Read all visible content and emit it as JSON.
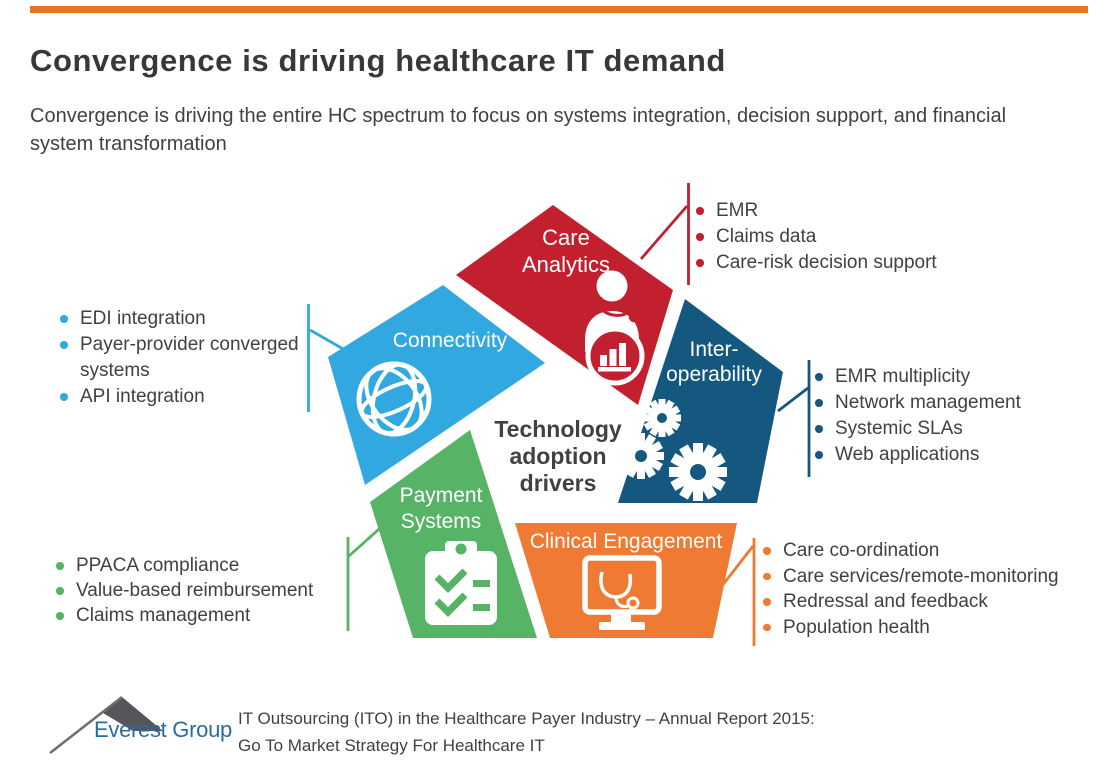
{
  "page": {
    "title": "Convergence is driving healthcare IT demand",
    "subtitle": "Convergence is driving the entire HC spectrum to focus on systems integration, decision support, and financial system transformation",
    "accent_bar_color": "#E87424"
  },
  "center": {
    "label": "Technology\nadoption\ndrivers"
  },
  "segments": {
    "care_analytics": {
      "label": "Care\nAnalytics",
      "color": "#C3202F",
      "items": [
        "EMR",
        "Claims data",
        "Care-risk decision support"
      ]
    },
    "connectivity": {
      "label": "Connectivity",
      "color": "#31A8E0",
      "items": [
        "EDI integration",
        "Payer-provider converged systems",
        "API integration"
      ]
    },
    "interoperability": {
      "label": "Inter-\noperability",
      "color": "#145880",
      "items": [
        "EMR multiplicity",
        "Network management",
        "Systemic SLAs",
        "Web applications"
      ]
    },
    "payment_systems": {
      "label": "Payment\nSystems",
      "color": "#57B366",
      "items": [
        "PPACA compliance",
        "Value-based reimbursement",
        "Claims management"
      ]
    },
    "clinical_engagement": {
      "label": "Clinical Engagement",
      "color": "#EF7A33",
      "items": [
        "Care co-ordination",
        "Care services/remote-monitoring",
        "Redressal and feedback",
        "Population health"
      ]
    }
  },
  "footer": {
    "logo_text": "Everest Group",
    "logo_color": "#2B6C9F",
    "line1": "IT Outsourcing (ITO) in the Healthcare Payer Industry – Annual Report 2015:",
    "line2": "Go To Market Strategy For Healthcare IT"
  }
}
